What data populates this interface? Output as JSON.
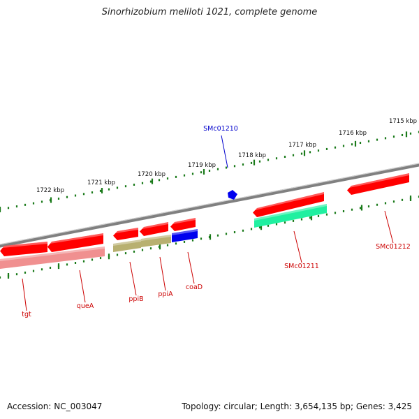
{
  "title": "Sinorhizobium meliloti 1021, complete genome",
  "footer": {
    "accession": "Accession: NC_003047",
    "summary": "Topology: circular; Length: 3,654,135 bp; Genes: 3,425"
  },
  "colors": {
    "backbone": "#808080",
    "outer_ticks": "#1a7a1a",
    "inner_ticks": "#1a7a1a",
    "gene_forward": "#ff0000",
    "gene_reverse_pink": "#f09090",
    "gene_olive": "#b8b070",
    "gene_green": "#20f0a0",
    "gene_blue": "#0000ee",
    "label_red": "#cc0000",
    "label_blue": "#0000cc"
  },
  "tick_labels": [
    "1715 kbp",
    "1716 kbp",
    "1717 kbp",
    "1718 kbp",
    "1719 kbp",
    "1720 kbp",
    "1721 kbp",
    "1722 kbp"
  ],
  "genes": [
    {
      "name": "SMc01210",
      "color": "blue"
    },
    {
      "name": "SMc01211",
      "color": "red"
    },
    {
      "name": "SMc01212",
      "color": "red"
    },
    {
      "name": "tgt",
      "color": "red"
    },
    {
      "name": "queA",
      "color": "red"
    },
    {
      "name": "ppiB",
      "color": "red"
    },
    {
      "name": "ppiA",
      "color": "red"
    },
    {
      "name": "coaD",
      "color": "red"
    }
  ]
}
